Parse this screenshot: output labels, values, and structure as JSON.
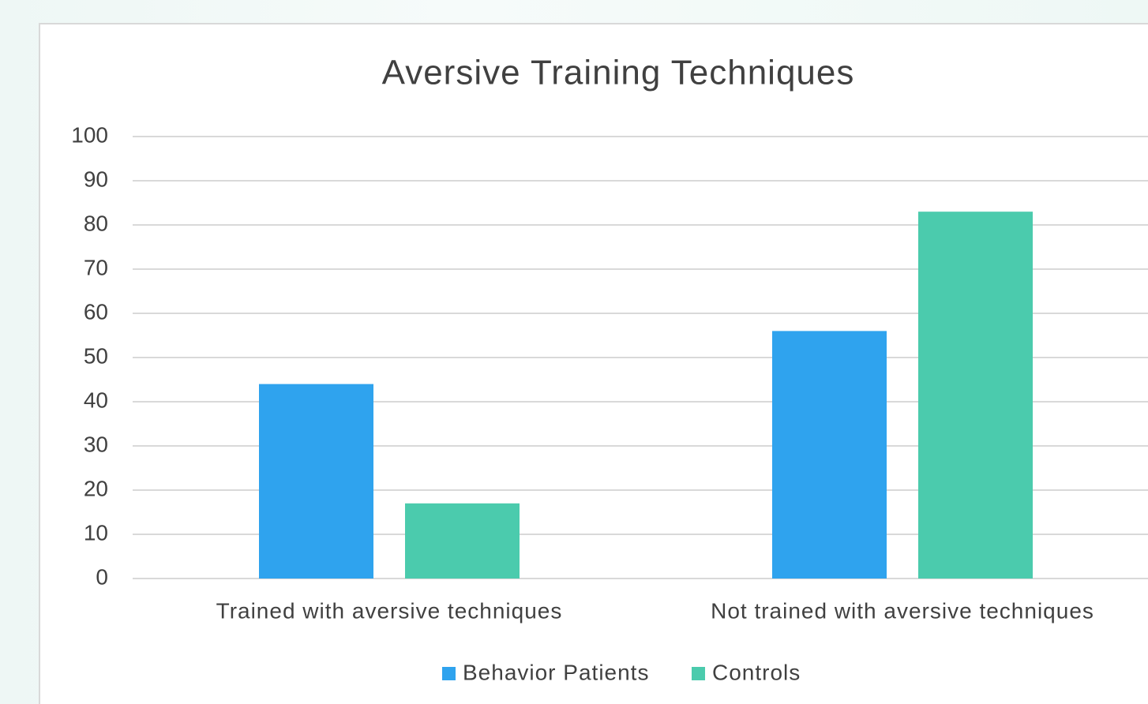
{
  "chart_data": {
    "type": "bar",
    "title": "Aversive Training Techniques",
    "categories": [
      "Trained with aversive techniques",
      "Not trained with aversive techniques"
    ],
    "series": [
      {
        "name": "Behavior Patients",
        "color": "#2fa3ee",
        "values": [
          44,
          56
        ]
      },
      {
        "name": "Controls",
        "color": "#4bcbad",
        "values": [
          17,
          83
        ]
      }
    ],
    "ylim": [
      0,
      100
    ],
    "yticks": [
      0,
      10,
      20,
      30,
      40,
      50,
      60,
      70,
      80,
      90,
      100
    ],
    "grid": true,
    "legend": "bottom"
  }
}
